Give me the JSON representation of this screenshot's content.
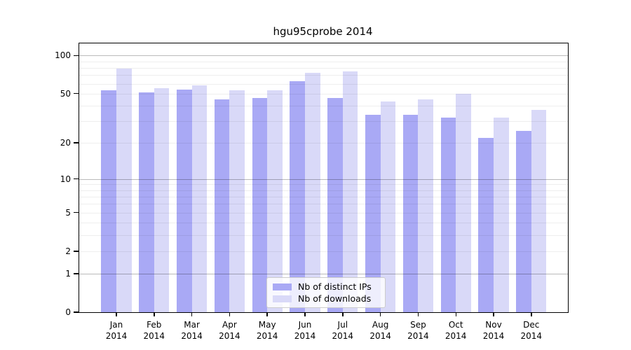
{
  "chart_data": {
    "type": "bar",
    "title": "hgu95cprobe 2014",
    "categories": [
      "Jan 2014",
      "Feb 2014",
      "Mar 2014",
      "Apr 2014",
      "May 2014",
      "Jun 2014",
      "Jul 2014",
      "Aug 2014",
      "Sep 2014",
      "Oct 2014",
      "Nov 2014",
      "Dec 2014"
    ],
    "series": [
      {
        "name": "Nb of distinct IPs",
        "color": "#a9a9f5",
        "values": [
          53,
          51,
          54,
          45,
          46,
          63,
          46,
          34,
          34,
          32,
          22,
          25
        ]
      },
      {
        "name": "Nb of downloads",
        "color": "#d9d9f8",
        "values": [
          79,
          55,
          58,
          53,
          53,
          73,
          75,
          43,
          45,
          50,
          32,
          37
        ]
      }
    ],
    "xlabel": "",
    "ylabel": "",
    "y_scale": "log1p",
    "y_ticks": [
      0,
      1,
      2,
      5,
      10,
      20,
      50,
      100
    ],
    "y_major_gridlines": [
      1,
      10,
      100
    ],
    "y_minor_gridlines": [
      2,
      3,
      4,
      5,
      6,
      7,
      8,
      9,
      20,
      30,
      40,
      50,
      60,
      70,
      80,
      90
    ],
    "ylim": [
      0,
      125
    ],
    "grid": "on",
    "legend_position": "bottom-center-inside"
  }
}
